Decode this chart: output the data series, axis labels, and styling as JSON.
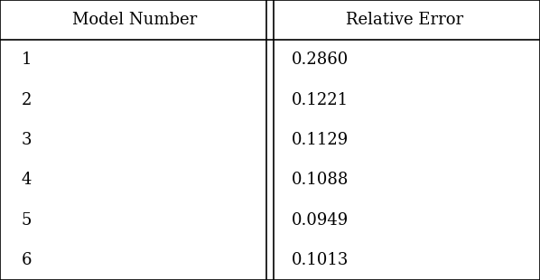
{
  "col_headers": [
    "Model Number",
    "Relative Error"
  ],
  "rows": [
    [
      "1",
      "0.2860"
    ],
    [
      "2",
      "0.1221"
    ],
    [
      "3",
      "0.1129"
    ],
    [
      "4",
      "0.1088"
    ],
    [
      "5",
      "0.0949"
    ],
    [
      "6",
      "0.1013"
    ]
  ],
  "background_color": "#ffffff",
  "text_color": "#000000",
  "border_color": "#000000",
  "header_fontsize": 13,
  "cell_fontsize": 13,
  "figsize": [
    5.98,
    3.1
  ],
  "dpi": 100,
  "col_split": 0.5
}
